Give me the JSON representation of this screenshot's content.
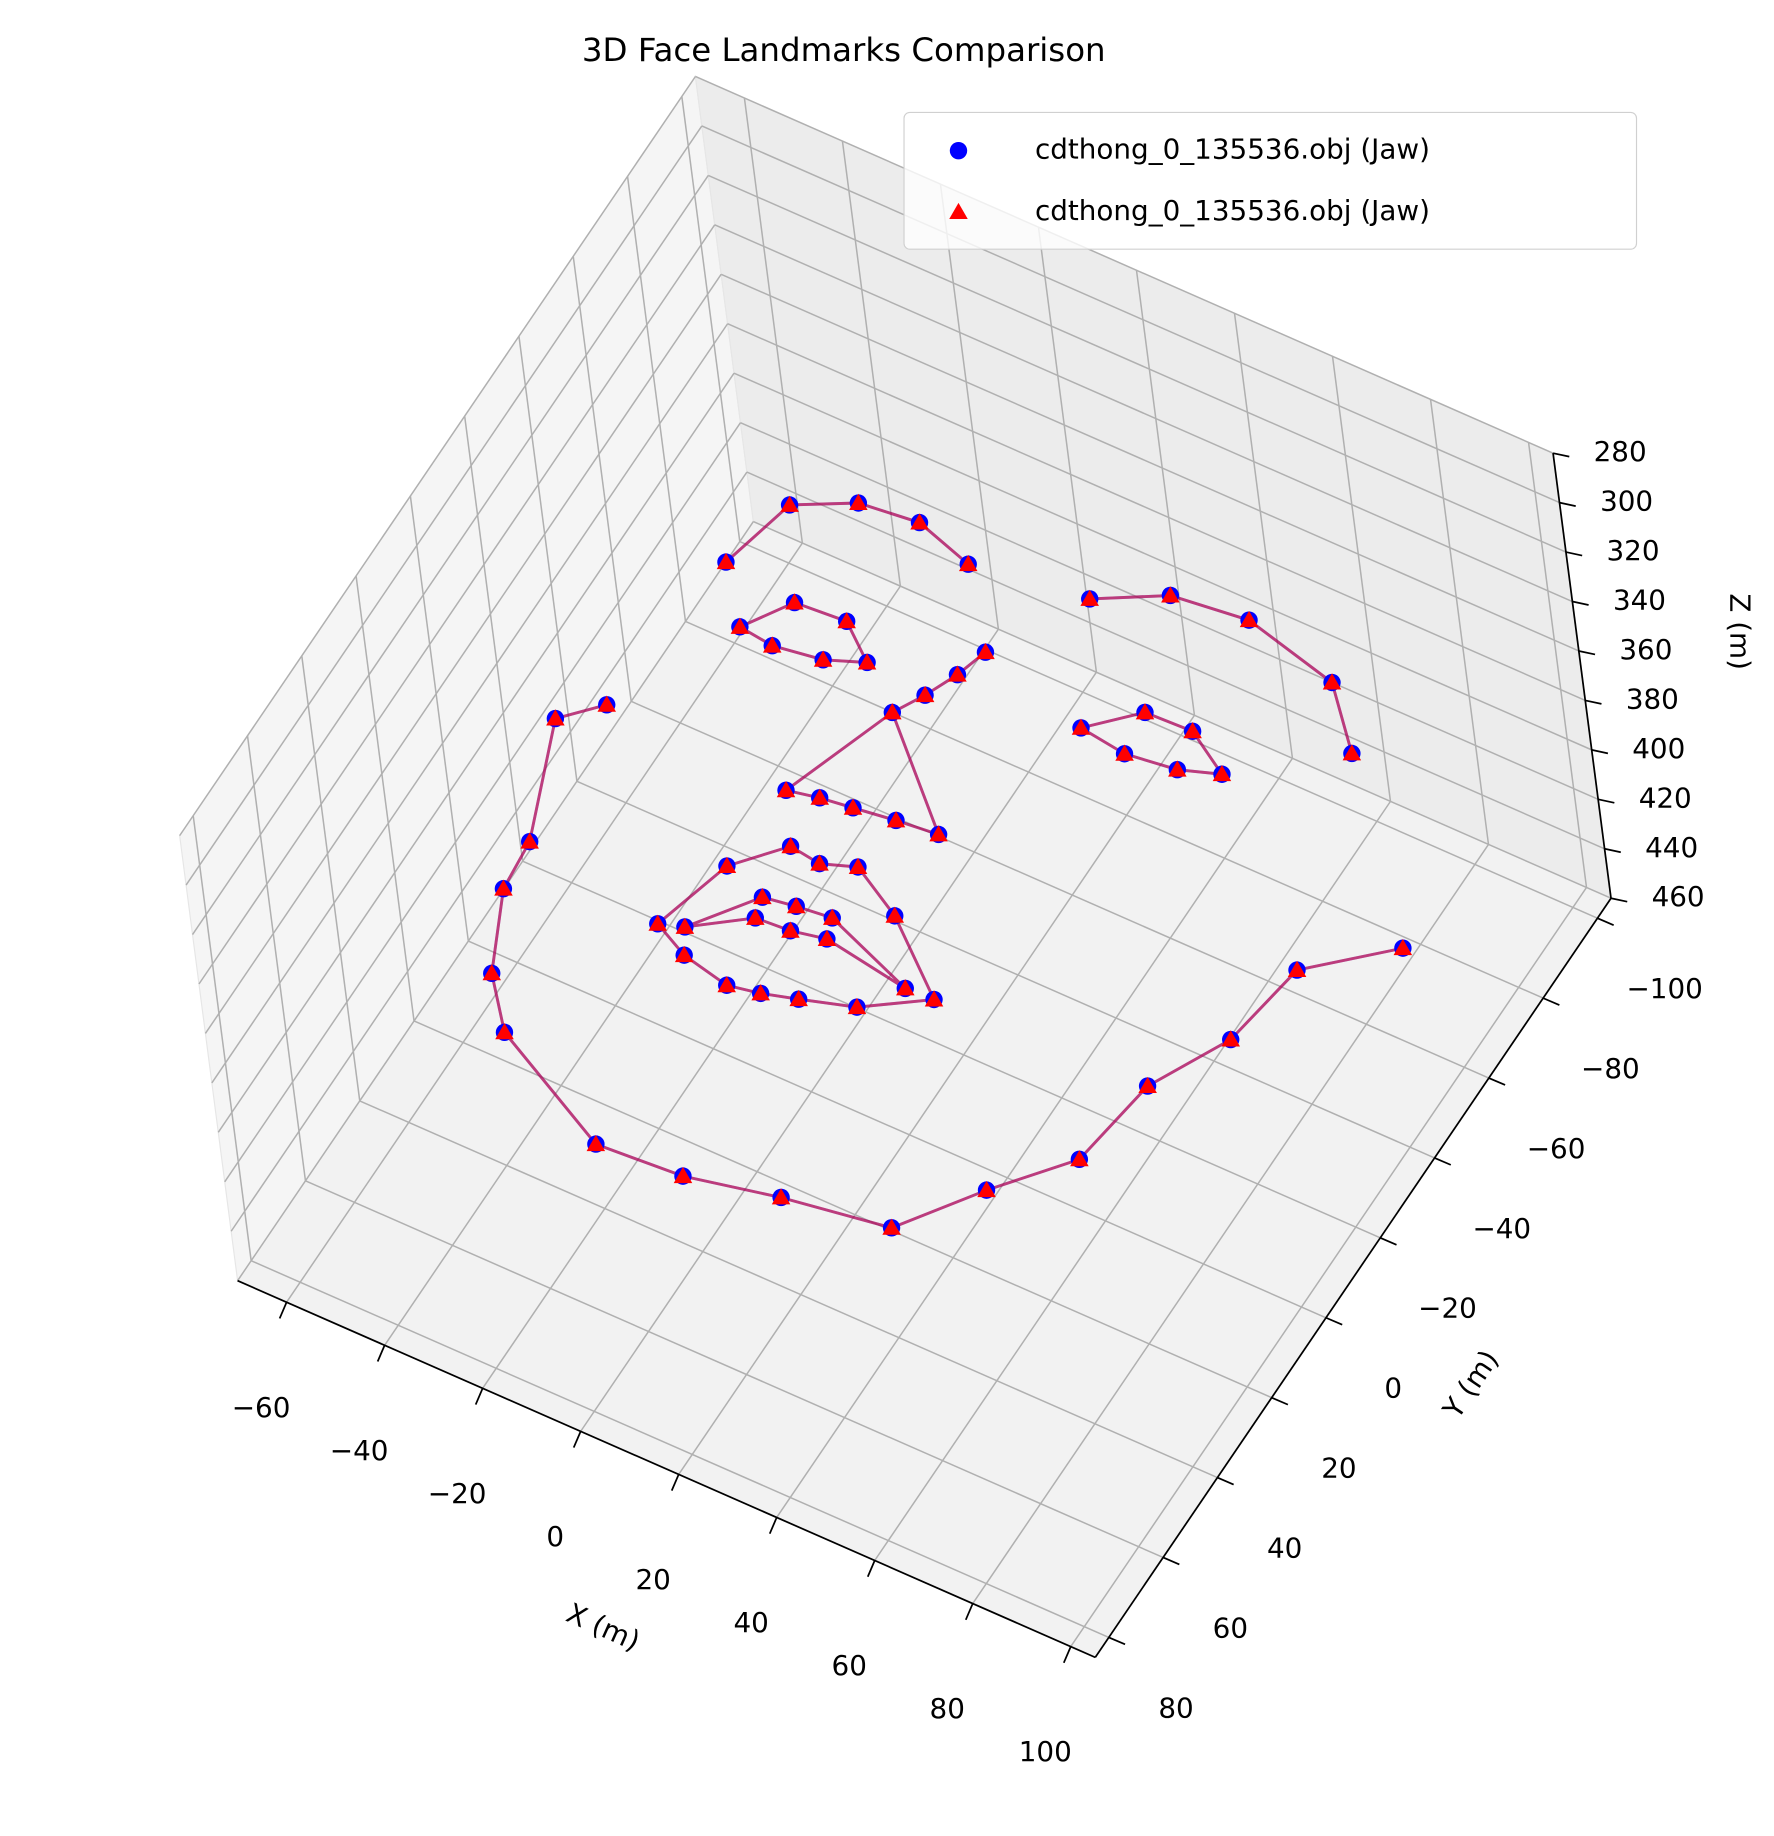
{
  "chart_data": {
    "type": "scatter3d",
    "title": "3D Face Landmarks Comparison",
    "xlabel": "X (m)",
    "ylabel": "Y (m)",
    "zlabel": "Z (m)",
    "xlim": [
      -70,
      105
    ],
    "ylim": [
      -105,
      85
    ],
    "zlim": [
      280,
      460
    ],
    "xticks": [
      {
        "value": -60,
        "label": "−60"
      },
      {
        "value": -40,
        "label": "−40"
      },
      {
        "value": -20,
        "label": "−20"
      },
      0,
      20,
      40,
      60,
      80,
      100
    ],
    "yticks": [
      {
        "value": -100,
        "label": "−100"
      },
      {
        "value": -80,
        "label": "−80"
      },
      {
        "value": -60,
        "label": "−60"
      },
      {
        "value": -40,
        "label": "−40"
      },
      {
        "value": -20,
        "label": "−20"
      },
      0,
      20,
      40,
      60,
      80
    ],
    "zticks": [
      280,
      300,
      320,
      340,
      360,
      380,
      400,
      420,
      440,
      460
    ],
    "grid": true,
    "legend": "upper right",
    "series": [
      {
        "name": "cdthong_0_135536.obj (Jaw)",
        "color": "#0000ff",
        "marker": "o",
        "x": [
          -54.6,
          -61.2,
          -52.1,
          -51.2,
          -44.0,
          -35.7,
          -9.4,
          7.7,
          25.4,
          46.0,
          56.9,
          68.2,
          71.1,
          79.2,
          82.2,
          96.5,
          -51.1,
          -47.2,
          -36.6,
          -24.9,
          -12.8,
          10.0,
          22.3,
          37.3,
          57.0,
          67.7,
          -0.7,
          -2.7,
          -5.6,
          -8.9,
          -17.3,
          -11.2,
          -4.9,
          3.2,
          11.4,
          -42.0,
          -36.0,
          -25.8,
          -18.2,
          -25.4,
          -34.9,
          22.4,
          30.8,
          40.3,
          49.5,
          42.0,
          32.0,
          -23.2,
          -18.5,
          -10.6,
          -4.2,
          2.2,
          13.2,
          28.3,
          17.0,
          7.0,
          0.4,
          -5.8,
          -15.7,
          -18.6,
          -9.6,
          -3.3,
          3.6,
          22.6,
          5.0,
          -1.6,
          -8.5
        ],
        "y": [
          -30.3,
          -23.3,
          2.6,
          13.9,
          31.2,
          41.5,
          55.3,
          54.1,
          49.9,
          46.4,
          31.1,
          17.3,
          -2.6,
          -18.6,
          -37.6,
          -50.8,
          -67.9,
          -84.3,
          -90.5,
          -91.9,
          -88.0,
          -91.6,
          -99.1,
          -101.0,
          -96.0,
          -84.0,
          -72.5,
          -65.8,
          -59.1,
          -53.0,
          -29.0,
          -30.4,
          -31.3,
          -32.5,
          -33.4,
          -56.6,
          -65.9,
          -66.7,
          -60.5,
          -57.3,
          -55.7,
          -66.0,
          -74.4,
          -74.8,
          -69.0,
          -66.1,
          -64.7,
          7.6,
          -9.4,
          -18.6,
          -17.7,
          -20.3,
          -14.0,
          -1.2,
          6.8,
          10.2,
          12.3,
          13.6,
          11.4,
          5.9,
          -6.4,
          -7.5,
          -8.3,
          -0.9,
          -3.8,
          -2.3,
          -1.8
        ],
        "z": [
          400,
          400,
          400,
          400,
          400,
          400,
          400,
          400,
          400,
          400,
          400,
          400,
          400,
          400,
          400,
          400,
          400,
          400,
          400,
          400,
          400,
          400,
          400,
          400,
          400,
          400,
          400,
          400,
          400,
          400,
          400,
          400,
          400,
          400,
          400,
          400,
          400,
          400,
          400,
          400,
          400,
          400,
          400,
          400,
          400,
          400,
          400,
          400,
          400,
          400,
          400,
          400,
          400,
          400,
          400,
          400,
          400,
          400,
          400,
          400,
          400,
          400,
          400,
          400,
          400,
          400,
          400
        ]
      },
      {
        "name": "cdthong_0_135536.obj (Jaw)",
        "color": "#ff0000",
        "marker": "^",
        "x": [
          -54.6,
          -61.2,
          -52.1,
          -51.2,
          -44.0,
          -35.7,
          -9.4,
          7.7,
          25.4,
          46.0,
          56.9,
          68.2,
          71.1,
          79.2,
          82.2,
          96.5,
          -51.1,
          -47.2,
          -36.6,
          -24.9,
          -12.8,
          10.0,
          22.3,
          37.3,
          57.0,
          67.7,
          -0.7,
          -2.7,
          -5.6,
          -8.9,
          -17.3,
          -11.2,
          -4.9,
          3.2,
          11.4,
          -42.0,
          -36.0,
          -25.8,
          -18.2,
          -25.4,
          -34.9,
          22.4,
          30.8,
          40.3,
          49.5,
          42.0,
          32.0,
          -23.2,
          -18.5,
          -10.6,
          -4.2,
          2.2,
          13.2,
          28.3,
          17.0,
          7.0,
          0.4,
          -5.8,
          -15.7,
          -18.6,
          -9.6,
          -3.3,
          3.6,
          22.6,
          5.0,
          -1.6,
          -8.5
        ],
        "y": [
          -30.3,
          -23.3,
          2.6,
          13.9,
          31.2,
          41.5,
          55.3,
          54.1,
          49.9,
          46.4,
          31.1,
          17.3,
          -2.6,
          -18.6,
          -37.6,
          -50.8,
          -67.9,
          -84.3,
          -90.5,
          -91.9,
          -88.0,
          -91.6,
          -99.1,
          -101.0,
          -96.0,
          -84.0,
          -72.5,
          -65.8,
          -59.1,
          -53.0,
          -29.0,
          -30.4,
          -31.3,
          -32.5,
          -33.4,
          -56.6,
          -65.9,
          -66.7,
          -60.5,
          -57.3,
          -55.7,
          -66.0,
          -74.4,
          -74.8,
          -69.0,
          -66.1,
          -64.7,
          7.6,
          -9.4,
          -18.6,
          -17.7,
          -20.3,
          -14.0,
          -1.2,
          6.8,
          10.2,
          12.3,
          13.6,
          11.4,
          5.9,
          -6.4,
          -7.5,
          -8.3,
          -0.9,
          -3.8,
          -2.3,
          -1.8
        ],
        "z": [
          400,
          400,
          400,
          400,
          400,
          400,
          400,
          400,
          400,
          400,
          400,
          400,
          400,
          400,
          400,
          400,
          400,
          400,
          400,
          400,
          400,
          400,
          400,
          400,
          400,
          400,
          400,
          400,
          400,
          400,
          400,
          400,
          400,
          400,
          400,
          400,
          400,
          400,
          400,
          400,
          400,
          400,
          400,
          400,
          400,
          400,
          400,
          400,
          400,
          400,
          400,
          400,
          400,
          400,
          400,
          400,
          400,
          400,
          400,
          400,
          400,
          400,
          400,
          400,
          400,
          400,
          400
        ]
      }
    ]
  }
}
